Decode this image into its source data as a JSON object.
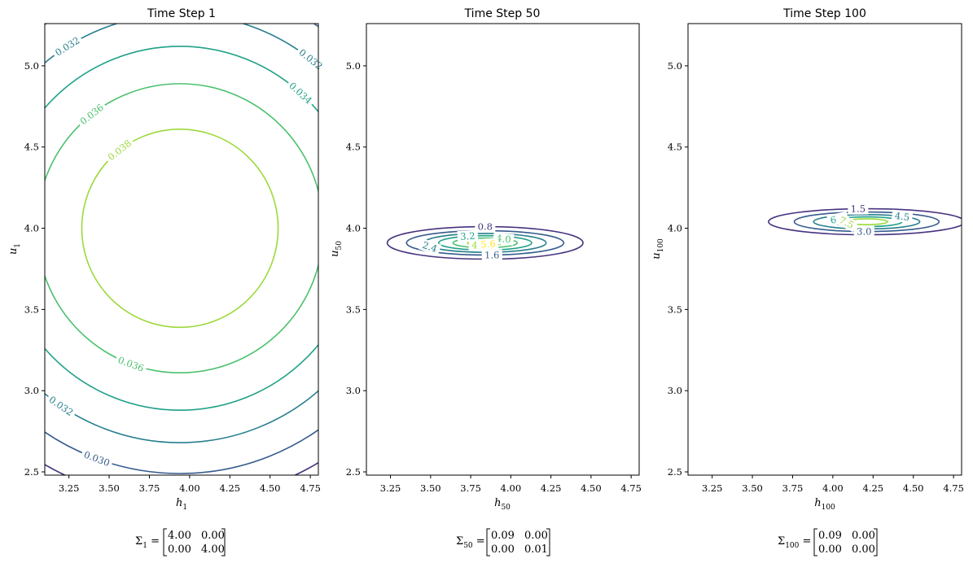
{
  "chart_data": [
    {
      "type": "contour",
      "title": "Time Step 1",
      "xlabel_base": "h",
      "xlabel_sub": "1",
      "ylabel_base": "u",
      "ylabel_sub": "1",
      "xlim": [
        3.1,
        4.8
      ],
      "ylim": [
        2.48,
        5.26
      ],
      "xticks": [
        "3.25",
        "3.50",
        "3.75",
        "4.00",
        "4.25",
        "4.50",
        "4.75"
      ],
      "yticks": [
        "2.5",
        "3.0",
        "3.5",
        "4.0",
        "4.5",
        "5.0"
      ],
      "center": [
        3.94,
        4.0
      ],
      "contours": [
        {
          "level": 0.038,
          "label": "0.038",
          "color": "#9cd93b",
          "rx": 0.61,
          "ry": 0.61
        },
        {
          "level": 0.036,
          "label": "0.036",
          "color": "#4ac16d",
          "rx": 0.89,
          "ry": 0.89
        },
        {
          "level": 0.034,
          "label": "0.034",
          "color": "#1fa187",
          "rx": 1.12,
          "ry": 1.12
        },
        {
          "level": 0.032,
          "label": "0.032",
          "color": "#277f8e",
          "rx": 1.32,
          "ry": 1.32
        },
        {
          "level": 0.03,
          "label": "0.030",
          "color": "#365c8d",
          "rx": 1.51,
          "ry": 1.51
        },
        {
          "level": 0.028,
          "label": "",
          "color": "#46327e",
          "rx": 1.68,
          "ry": 1.68
        }
      ],
      "matrix": {
        "symbol": "Σ",
        "sub": "1",
        "rows": [
          [
            "4.00",
            "0.00"
          ],
          [
            "0.00",
            "4.00"
          ]
        ]
      }
    },
    {
      "type": "contour",
      "title": "Time Step 50",
      "xlabel_base": "h",
      "xlabel_sub": "50",
      "ylabel_base": "u",
      "ylabel_sub": "50",
      "xlim": [
        3.1,
        4.8
      ],
      "ylim": [
        2.48,
        5.26
      ],
      "xticks": [
        "3.25",
        "3.50",
        "3.75",
        "4.00",
        "4.25",
        "4.50",
        "4.75"
      ],
      "yticks": [
        "2.5",
        "3.0",
        "3.5",
        "4.0",
        "4.5",
        "5.0"
      ],
      "center": [
        3.84,
        3.91
      ],
      "contours": [
        {
          "level": 0.8,
          "label": "0.8",
          "color": "#46327e",
          "rx": 0.61,
          "ry": 0.1
        },
        {
          "level": 1.6,
          "label": "1.6",
          "color": "#365c8d",
          "rx": 0.49,
          "ry": 0.075
        },
        {
          "level": 2.4,
          "label": "2.4",
          "color": "#277f8e",
          "rx": 0.38,
          "ry": 0.058
        },
        {
          "level": 3.2,
          "label": "3.2",
          "color": "#1fa187",
          "rx": 0.29,
          "ry": 0.044
        },
        {
          "level": 4.0,
          "label": "4.0",
          "color": "#4ac16d",
          "rx": 0.2,
          "ry": 0.03
        },
        {
          "level": 4.8,
          "label": "4.8",
          "color": "#9cd93b",
          "rx": 0.11,
          "ry": 0.017
        },
        {
          "level": 5.6,
          "label": "5.6",
          "color": "#fde725",
          "rx": 0.05,
          "ry": 0.008
        }
      ],
      "matrix": {
        "symbol": "Σ",
        "sub": "50",
        "rows": [
          [
            "0.09",
            "0.00"
          ],
          [
            "0.00",
            "0.01"
          ]
        ]
      }
    },
    {
      "type": "contour",
      "title": "Time Step 100",
      "xlabel_base": "h",
      "xlabel_sub": "100",
      "ylabel_base": "u",
      "ylabel_sub": "100",
      "xlim": [
        3.1,
        4.8
      ],
      "ylim": [
        2.48,
        5.26
      ],
      "xticks": [
        "3.25",
        "3.50",
        "3.75",
        "4.00",
        "4.25",
        "4.50",
        "4.75"
      ],
      "yticks": [
        "2.5",
        "3.0",
        "3.5",
        "4.0",
        "4.5",
        "5.0"
      ],
      "center": [
        4.21,
        4.04
      ],
      "contours": [
        {
          "level": 1.5,
          "label": "1.5",
          "color": "#46327e",
          "rx": 0.61,
          "ry": 0.08
        },
        {
          "level": 3.0,
          "label": "3.0",
          "color": "#365c8d",
          "rx": 0.45,
          "ry": 0.06
        },
        {
          "level": 4.5,
          "label": "4.5",
          "color": "#277f8e",
          "rx": 0.33,
          "ry": 0.044
        },
        {
          "level": 6.0,
          "label": "6.0",
          "color": "#1fa187",
          "rx": 0.22,
          "ry": 0.03
        },
        {
          "level": 7.5,
          "label": "7.5",
          "color": "#9cd93b",
          "rx": 0.13,
          "ry": 0.018
        }
      ],
      "matrix": {
        "symbol": "Σ",
        "sub": "100",
        "rows": [
          [
            "0.09",
            "0.00"
          ],
          [
            "0.00",
            "0.00"
          ]
        ]
      }
    }
  ]
}
